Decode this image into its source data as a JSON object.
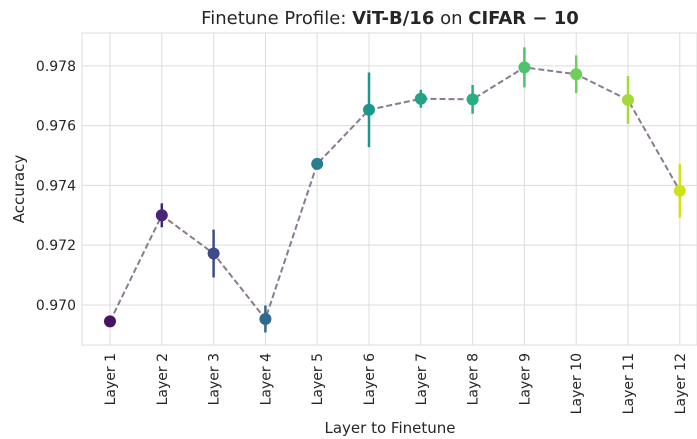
{
  "chart_data": {
    "type": "pointplot",
    "title": [
      "Finetune Profile: ",
      "ViT-B/16",
      " on ",
      "CIFAR − 10"
    ],
    "xlabel": "Layer to Finetune",
    "ylabel": "Accuracy",
    "categories": [
      "Layer 1",
      "Layer 2",
      "Layer 3",
      "Layer 4",
      "Layer 5",
      "Layer 6",
      "Layer 7",
      "Layer 8",
      "Layer 9",
      "Layer 10",
      "Layer 11",
      "Layer 12"
    ],
    "values": [
      0.96945,
      0.973,
      0.97172,
      0.96953,
      0.97472,
      0.97653,
      0.9769,
      0.97688,
      0.97795,
      0.97772,
      0.97686,
      0.97382
    ],
    "errors": [
      0.00015,
      0.0004,
      0.0008,
      0.00045,
      0.0001,
      0.00125,
      0.0003,
      0.00048,
      0.00067,
      0.00063,
      0.0008,
      0.0009
    ],
    "colors": [
      "#471365",
      "#482677",
      "#3e4a89",
      "#31688e",
      "#287d8e",
      "#1f968b",
      "#20a386",
      "#29af7f",
      "#4ec36b",
      "#6ece58",
      "#a2da37",
      "#d0e11c"
    ],
    "line_color": "#8a7a8f",
    "ylim": [
      0.96866,
      0.9791
    ],
    "yticks": [
      {
        "value": 0.97,
        "label": "0.970"
      },
      0.972,
      0.974,
      0.976,
      0.978
    ],
    "grid": true
  }
}
